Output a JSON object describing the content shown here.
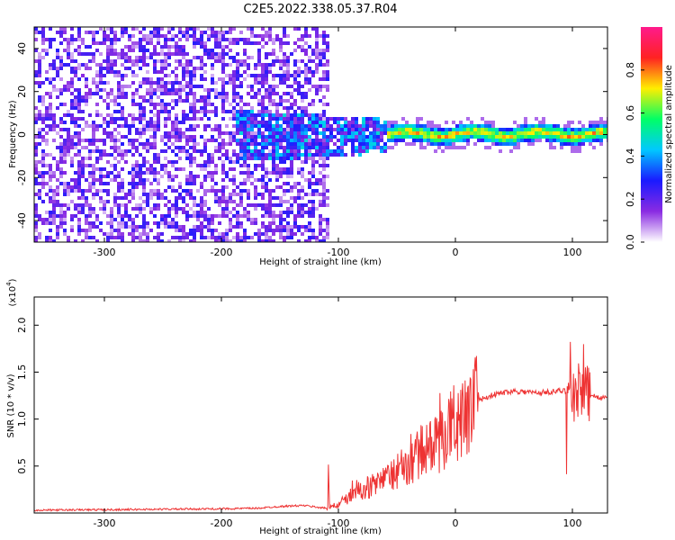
{
  "title": "C2E5.2022.338.05.37.R04",
  "colors": {
    "line": "#ee3333",
    "gradient": [
      "#ffffff",
      "#8a2be2",
      "#1a1aff",
      "#00c8ff",
      "#00ff66",
      "#ffee00",
      "#ff2222",
      "#ff1a8c"
    ]
  },
  "chart_data": [
    {
      "type": "heatmap",
      "xlabel": "Height of straight line (km)",
      "ylabel": "Frequency (Hz)",
      "xlim": [
        -360,
        130
      ],
      "ylim": [
        -50,
        50
      ],
      "xticks": [
        "-300",
        "-200",
        "-100",
        "0",
        "100"
      ],
      "yticks": [
        "-40",
        "-20",
        "0",
        "20",
        "40"
      ],
      "colorbar": {
        "label": "Normalized spectral amplitude",
        "range": [
          0.0,
          1.0
        ],
        "ticks": [
          "0.0",
          "0.2",
          "0.4",
          "0.6",
          "0.8"
        ]
      },
      "description_regions": [
        {
          "x": [
            -360,
            -110
          ],
          "y": [
            -50,
            50
          ],
          "amplitude": 0.12
        },
        {
          "x": [
            -190,
            -60
          ],
          "y": [
            -12,
            12
          ],
          "amplitude": 0.3
        },
        {
          "x": [
            -60,
            130
          ],
          "y": [
            -3,
            5
          ],
          "amplitude": 0.6
        }
      ]
    },
    {
      "type": "line",
      "xlabel": "Height of straight line (km)",
      "ylabel": "SNR (10 * v/v)",
      "multiplier": "(x10",
      "multiplier_exp": "4",
      "multiplier_close": ")",
      "xlim": [
        -360,
        130
      ],
      "ylim": [
        0,
        23000
      ],
      "xticks": [
        "-300",
        "-200",
        "-100",
        "0",
        "100"
      ],
      "yticks": [
        "0.5",
        "1.0",
        "1.5",
        "2.0"
      ],
      "series": [
        {
          "x": [
            -360,
            -300,
            -250,
            -200,
            -170,
            -150,
            -130,
            -110,
            -100,
            -90,
            -80,
            -70,
            -60,
            -50,
            -40,
            -30,
            -20,
            -10,
            -5,
            0,
            5,
            10,
            15,
            20,
            30,
            40,
            50,
            60,
            70,
            80,
            90,
            100,
            105,
            108,
            110,
            112,
            115,
            120,
            130
          ],
          "y": [
            300,
            350,
            400,
            450,
            500,
            700,
            800,
            500,
            900,
            1800,
            2500,
            3000,
            3500,
            4500,
            5000,
            6500,
            7000,
            8000,
            9000,
            10000,
            9500,
            11000,
            11500,
            12000,
            12500,
            12800,
            13000,
            12900,
            12800,
            12900,
            13000,
            13000,
            13000,
            13100,
            13000,
            12900,
            12600,
            12400,
            12200
          ]
        }
      ]
    }
  ]
}
